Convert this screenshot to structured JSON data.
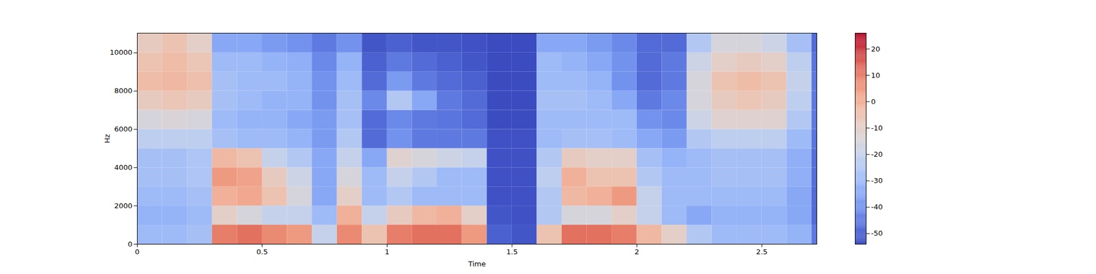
{
  "chart_data": {
    "type": "heatmap",
    "x_label": "Time",
    "y_label": "Hz",
    "xlim": [
      0,
      2.72
    ],
    "ylim": [
      0,
      11025
    ],
    "xticks": [
      0,
      0.5,
      1,
      1.5,
      2,
      2.5
    ],
    "yticks": [
      0,
      2000,
      4000,
      6000,
      8000,
      10000
    ],
    "x_edges": [
      0,
      0.1,
      0.2,
      0.3,
      0.4,
      0.5,
      0.6,
      0.7,
      0.8,
      0.9,
      1.0,
      1.1,
      1.2,
      1.3,
      1.4,
      1.5,
      1.6,
      1.7,
      1.8,
      1.9,
      2.0,
      2.1,
      2.2,
      2.3,
      2.4,
      2.5,
      2.6,
      2.7,
      2.72
    ],
    "y_edges": [
      0,
      1000,
      2000,
      3000,
      4000,
      5000,
      6000,
      7000,
      8000,
      9000,
      10000,
      11025
    ],
    "cells": [
      [
        -30,
        -30,
        -28,
        10,
        12,
        8,
        5,
        -20,
        8,
        -5,
        10,
        12,
        12,
        5,
        -50,
        -52,
        -5,
        12,
        12,
        10,
        -2,
        -10,
        -25,
        -30,
        -30,
        -30,
        -32,
        -45
      ],
      [
        -32,
        -32,
        -30,
        -10,
        -15,
        -20,
        -20,
        -30,
        0,
        -20,
        -8,
        -2,
        0,
        -10,
        -52,
        -53,
        -25,
        -15,
        -15,
        -10,
        -20,
        -30,
        -35,
        -32,
        -32,
        -32,
        -35,
        -48
      ],
      [
        -30,
        -30,
        -28,
        0,
        2,
        -5,
        -15,
        -35,
        -10,
        -30,
        -25,
        -30,
        -30,
        -30,
        -53,
        -53,
        -25,
        -2,
        0,
        5,
        -20,
        -30,
        -30,
        -30,
        -30,
        -30,
        -35,
        -48
      ],
      [
        -28,
        -28,
        -26,
        5,
        3,
        -8,
        -18,
        -35,
        -15,
        -30,
        -20,
        -25,
        -30,
        -30,
        -53,
        -53,
        -22,
        0,
        -5,
        -5,
        -25,
        -30,
        -30,
        -28,
        -28,
        -28,
        -33,
        -47
      ],
      [
        -28,
        -28,
        -26,
        -2,
        -5,
        -20,
        -25,
        -35,
        -20,
        -35,
        -12,
        -15,
        -18,
        -20,
        -53,
        -53,
        -25,
        -8,
        -10,
        -10,
        -28,
        -32,
        -30,
        -28,
        -28,
        -28,
        -33,
        -47
      ],
      [
        -22,
        -22,
        -22,
        -28,
        -30,
        -30,
        -32,
        -38,
        -25,
        -48,
        -40,
        -45,
        -45,
        -45,
        -53,
        -53,
        -30,
        -28,
        -28,
        -30,
        -35,
        -38,
        -25,
        -22,
        -22,
        -22,
        -30,
        -46
      ],
      [
        -15,
        -14,
        -15,
        -30,
        -32,
        -32,
        -35,
        -38,
        -28,
        -48,
        -42,
        -45,
        -46,
        -48,
        -54,
        -54,
        -30,
        -30,
        -30,
        -30,
        -40,
        -42,
        -18,
        -12,
        -12,
        -12,
        -25,
        -45
      ],
      [
        -8,
        -6,
        -8,
        -28,
        -30,
        -32,
        -32,
        -40,
        -28,
        -42,
        -25,
        -35,
        -45,
        -48,
        -54,
        -54,
        -28,
        -28,
        -30,
        -35,
        -45,
        -42,
        -15,
        -8,
        -6,
        -8,
        -22,
        -45
      ],
      [
        -3,
        -2,
        -4,
        -28,
        -30,
        -30,
        -32,
        -40,
        -30,
        -48,
        -38,
        -45,
        -48,
        -50,
        -54,
        -54,
        -30,
        -30,
        -32,
        -40,
        -48,
        -45,
        -15,
        -5,
        -3,
        -5,
        -20,
        -45
      ],
      [
        -5,
        -3,
        -6,
        -30,
        -30,
        -32,
        -33,
        -42,
        -32,
        -50,
        -45,
        -48,
        -50,
        -52,
        -54,
        -54,
        -30,
        -32,
        -35,
        -40,
        -48,
        -45,
        -18,
        -10,
        -8,
        -10,
        -22,
        -46
      ],
      [
        -8,
        -5,
        -10,
        -35,
        -35,
        -38,
        -40,
        -45,
        -40,
        -52,
        -50,
        -52,
        -52,
        -53,
        -54,
        -54,
        -35,
        -35,
        -38,
        -42,
        -48,
        -48,
        -25,
        -15,
        -15,
        -18,
        -28,
        -48
      ]
    ],
    "colorbar": {
      "range": [
        -54,
        26
      ],
      "ticks": [
        -50,
        -40,
        -30,
        -20,
        -10,
        0,
        10,
        20
      ]
    }
  }
}
